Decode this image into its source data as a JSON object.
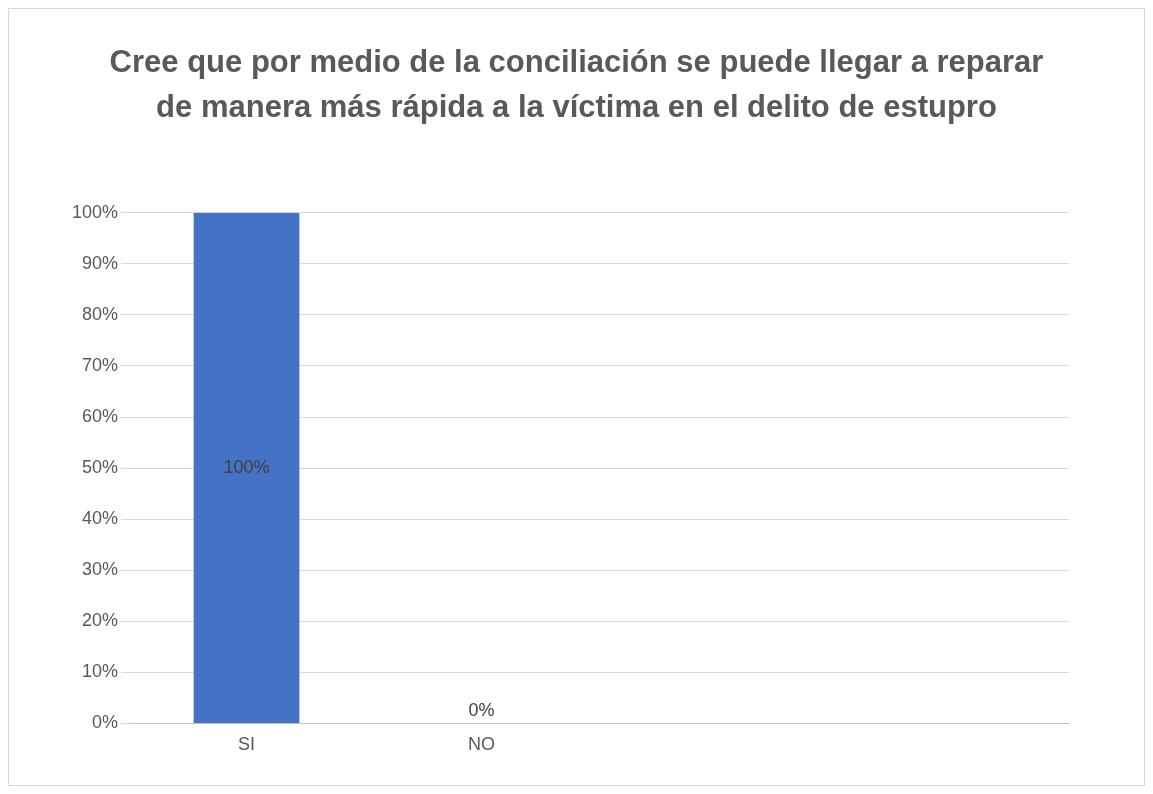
{
  "chart_data": {
    "type": "bar",
    "title": "Cree que por medio de la conciliación se puede llegar a reparar de manera más rápida a la víctima en el delito de estupro",
    "categories": [
      "SI",
      "NO",
      null,
      null
    ],
    "values": [
      100,
      0,
      null,
      null
    ],
    "color": "#4472c4",
    "ylim": [
      0,
      100
    ],
    "yticks": [
      {
        "value": 0,
        "label": "0%"
      },
      {
        "value": 10,
        "label": "10%"
      },
      {
        "value": 20,
        "label": "20%"
      },
      {
        "value": 30,
        "label": "30%"
      },
      {
        "value": 40,
        "label": "40%"
      },
      {
        "value": 50,
        "label": "50%"
      },
      {
        "value": 60,
        "label": "60%"
      },
      {
        "value": 70,
        "label": "70%"
      },
      {
        "value": 80,
        "label": "80%"
      },
      {
        "value": 90,
        "label": "90%"
      },
      {
        "value": 100,
        "label": "100%"
      }
    ],
    "value_labels": [
      "100%",
      "0%",
      null,
      null
    ],
    "grid": "y"
  }
}
